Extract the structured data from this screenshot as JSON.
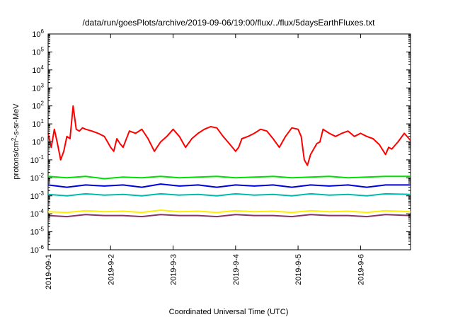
{
  "chart_data": {
    "type": "line",
    "title": "/data/run/goesPlots/archive/2019-09-06/19:00/flux/../flux/5daysEarthFluxes.txt",
    "xlabel": "Coordinated Universal Time (UTC)",
    "ylabel_parts": {
      "base": "protons/cm",
      "sup": "2",
      "rest": "-s-sr-MeV"
    },
    "yscale": "log",
    "ylim_exp": [
      -6,
      6
    ],
    "y_ticks": [
      {
        "base": "10",
        "exp": "-6"
      },
      {
        "base": "10",
        "exp": "-5"
      },
      {
        "base": "10",
        "exp": "-4"
      },
      {
        "base": "10",
        "exp": "-3"
      },
      {
        "base": "10",
        "exp": "-2"
      },
      {
        "base": "10",
        "exp": "-1"
      },
      {
        "base": "10",
        "exp": "0"
      },
      {
        "base": "10",
        "exp": "1"
      },
      {
        "base": "10",
        "exp": "2"
      },
      {
        "base": "10",
        "exp": "3"
      },
      {
        "base": "10",
        "exp": "4"
      },
      {
        "base": "10",
        "exp": "5"
      },
      {
        "base": "10",
        "exp": "6"
      }
    ],
    "x_ticks": [
      "2019-09-1",
      "2019-9-2",
      "2019-9-3",
      "2019-9-4",
      "2019-9-5",
      "2019-9-6"
    ],
    "xlim_days": [
      0,
      5.8
    ],
    "series": [
      {
        "color": "#ff0000",
        "x": [
          0,
          0.05,
          0.1,
          0.15,
          0.2,
          0.25,
          0.3,
          0.35,
          0.4,
          0.45,
          0.5,
          0.55,
          0.6,
          0.7,
          0.8,
          0.9,
          0.95,
          1.0,
          1.05,
          1.1,
          1.15,
          1.2,
          1.3,
          1.4,
          1.5,
          1.6,
          1.7,
          1.8,
          1.9,
          2.0,
          2.1,
          2.2,
          2.3,
          2.4,
          2.5,
          2.6,
          2.7,
          2.8,
          2.9,
          3.0,
          3.05,
          3.1,
          3.2,
          3.3,
          3.4,
          3.5,
          3.6,
          3.7,
          3.8,
          3.9,
          4.0,
          4.05,
          4.1,
          4.15,
          4.2,
          4.25,
          4.3,
          4.35,
          4.4,
          4.5,
          4.6,
          4.7,
          4.8,
          4.9,
          5.0,
          5.1,
          5.2,
          5.3,
          5.4,
          5.45,
          5.5,
          5.6,
          5.7,
          5.8
        ],
        "y": [
          3,
          0.5,
          5,
          0.8,
          0.1,
          0.3,
          2,
          1.5,
          100,
          5,
          4,
          6,
          5,
          4,
          3,
          2,
          1,
          0.5,
          0.3,
          1.5,
          0.8,
          0.5,
          4,
          3,
          5,
          1.5,
          0.3,
          1,
          2,
          5,
          2,
          0.5,
          1.5,
          3,
          5,
          7,
          6,
          2,
          0.8,
          0.3,
          0.5,
          1.5,
          2,
          3,
          5,
          4,
          1.5,
          0.5,
          2,
          6,
          5,
          2,
          0.1,
          0.05,
          0.2,
          0.4,
          0.8,
          1,
          5,
          3,
          2,
          3,
          4,
          2,
          3,
          2,
          1.5,
          0.7,
          0.2,
          0.5,
          0.4,
          1,
          3,
          1.2
        ]
      },
      {
        "color": "#00e000",
        "x": [
          0,
          0.3,
          0.6,
          0.9,
          1.2,
          1.5,
          1.8,
          2.1,
          2.4,
          2.7,
          3.0,
          3.3,
          3.6,
          3.9,
          4.2,
          4.5,
          4.8,
          5.1,
          5.4,
          5.8
        ],
        "y": [
          0.012,
          0.01,
          0.012,
          0.009,
          0.011,
          0.01,
          0.012,
          0.01,
          0.011,
          0.012,
          0.01,
          0.011,
          0.012,
          0.01,
          0.011,
          0.012,
          0.01,
          0.011,
          0.012,
          0.012
        ]
      },
      {
        "color": "#0000dd",
        "x": [
          0,
          0.3,
          0.6,
          0.9,
          1.2,
          1.5,
          1.8,
          2.1,
          2.4,
          2.7,
          3.0,
          3.3,
          3.6,
          3.9,
          4.2,
          4.5,
          4.8,
          5.1,
          5.4,
          5.8
        ],
        "y": [
          0.004,
          0.003,
          0.004,
          0.0035,
          0.004,
          0.003,
          0.0045,
          0.0035,
          0.004,
          0.003,
          0.004,
          0.0035,
          0.004,
          0.003,
          0.004,
          0.0035,
          0.004,
          0.003,
          0.004,
          0.004
        ]
      },
      {
        "color": "#00bbaa",
        "x": [
          0,
          0.3,
          0.6,
          0.9,
          1.2,
          1.5,
          1.8,
          2.1,
          2.4,
          2.7,
          3.0,
          3.3,
          3.6,
          3.9,
          4.2,
          4.5,
          4.8,
          5.1,
          5.4,
          5.8
        ],
        "y": [
          0.0012,
          0.001,
          0.0013,
          0.0011,
          0.0012,
          0.001,
          0.0013,
          0.0011,
          0.0012,
          0.001,
          0.0013,
          0.0011,
          0.0012,
          0.001,
          0.0013,
          0.0011,
          0.0012,
          0.001,
          0.0013,
          0.0012
        ]
      },
      {
        "color": "#ffee00",
        "x": [
          0,
          0.3,
          0.6,
          0.9,
          1.2,
          1.5,
          1.8,
          2.1,
          2.4,
          2.7,
          3.0,
          3.3,
          3.6,
          3.9,
          4.2,
          4.5,
          4.8,
          5.1,
          5.4,
          5.8
        ],
        "y": [
          0.00013,
          0.00012,
          0.00015,
          0.00013,
          0.00014,
          0.00012,
          0.00016,
          0.00013,
          0.00014,
          0.00012,
          0.00015,
          0.00013,
          0.00014,
          0.00012,
          0.00015,
          0.00013,
          0.00014,
          0.00012,
          0.00015,
          0.00013
        ]
      },
      {
        "color": "#883366",
        "x": [
          0,
          0.3,
          0.6,
          0.9,
          1.2,
          1.5,
          1.8,
          2.1,
          2.4,
          2.7,
          3.0,
          3.3,
          3.6,
          3.9,
          4.2,
          4.5,
          4.8,
          5.1,
          5.4,
          5.8
        ],
        "y": [
          8e-05,
          7e-05,
          9e-05,
          8e-05,
          8e-05,
          7e-05,
          9e-05,
          8e-05,
          8e-05,
          7e-05,
          9e-05,
          8e-05,
          8e-05,
          7e-05,
          9e-05,
          8e-05,
          8e-05,
          7e-05,
          9e-05,
          8e-05
        ]
      }
    ]
  }
}
